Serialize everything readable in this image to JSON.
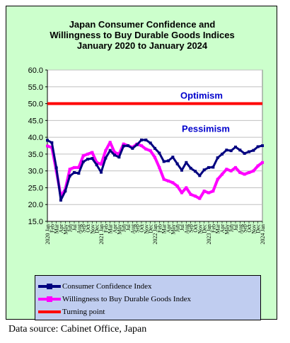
{
  "chart_data": {
    "type": "line",
    "title_lines": [
      "Japan Consumer Confidence and",
      "Willingness to Buy Durable Goods Indices",
      "January 2020 to January 2024"
    ],
    "ylim": [
      15,
      60
    ],
    "yticks": [
      "15.0",
      "20.0",
      "25.0",
      "30.0",
      "35.0",
      "40.0",
      "45.0",
      "50.0",
      "55.0",
      "60.0"
    ],
    "grid": true,
    "x_labels": [
      "2020 Jan",
      "Feb",
      "Mar",
      "Apr",
      "May",
      "Jun",
      "Jul",
      "Aug",
      "Sep",
      "Oct",
      "Nov",
      "Dec",
      "2021 Jan",
      "Feb",
      "Mar",
      "Apr",
      "May",
      "Jun",
      "Jul",
      "Aug",
      "Sep",
      "Oct",
      "Nov",
      "Dec",
      "2022 Jan",
      "Feb",
      "Mar",
      "Apr",
      "May",
      "Jun",
      "Jul",
      "Aug",
      "Sep",
      "Oct",
      "Nov",
      "Dec",
      "2023 Jan",
      "Feb",
      "Mar",
      "Apr",
      "May",
      "Jun",
      "Jul",
      "Aug",
      "Sep",
      "Oct",
      "Nov",
      "Dec",
      "2024 Jan"
    ],
    "series": [
      {
        "name": "Consumer Confidence Index",
        "color": "#000080",
        "values": [
          39.1,
          38.4,
          30.9,
          21.3,
          24.0,
          28.5,
          29.5,
          29.3,
          32.7,
          33.5,
          33.7,
          31.8,
          29.6,
          33.8,
          36.1,
          34.7,
          34.1,
          37.4,
          37.5,
          36.7,
          37.8,
          39.2,
          39.2,
          38.3,
          36.7,
          35.3,
          32.8,
          33.0,
          34.1,
          32.1,
          30.2,
          32.5,
          30.8,
          29.9,
          28.6,
          30.3,
          31.0,
          31.1,
          33.9,
          35.0,
          36.2,
          36.0,
          37.1,
          36.2,
          35.2,
          35.7,
          36.1,
          37.2,
          37.5
        ]
      },
      {
        "name": "Willingness to Buy Durable Goods Index",
        "color": "#ff00ff",
        "values": [
          37.4,
          37.0,
          30.0,
          22.5,
          24.5,
          30.5,
          31.0,
          31.0,
          34.5,
          35.0,
          35.5,
          32.5,
          32.0,
          36.0,
          38.5,
          35.5,
          35.0,
          38.0,
          37.5,
          37.0,
          38.0,
          37.5,
          36.5,
          36.0,
          34.0,
          31.0,
          27.5,
          27.0,
          26.5,
          25.5,
          23.5,
          25.0,
          23.0,
          22.5,
          21.8,
          24.0,
          23.5,
          24.0,
          27.5,
          29.0,
          30.5,
          30.0,
          31.0,
          29.5,
          29.0,
          29.5,
          30.0,
          31.5,
          32.5
        ]
      },
      {
        "name": "Turning point",
        "color": "#ff0000",
        "values": [
          50,
          50
        ]
      }
    ],
    "annotations": [
      "Optimism",
      "Pessimism"
    ]
  },
  "legend": {
    "items": [
      {
        "label": "Consumer Confidence Index",
        "color": "#000080",
        "marker": true
      },
      {
        "label": "Willingness to Buy Durable Goods Index",
        "color": "#ff00ff",
        "marker": true
      },
      {
        "label": "Turning point",
        "color": "#ff0000",
        "marker": false
      }
    ]
  },
  "source_note": "Data source: Cabinet Office, Japan"
}
